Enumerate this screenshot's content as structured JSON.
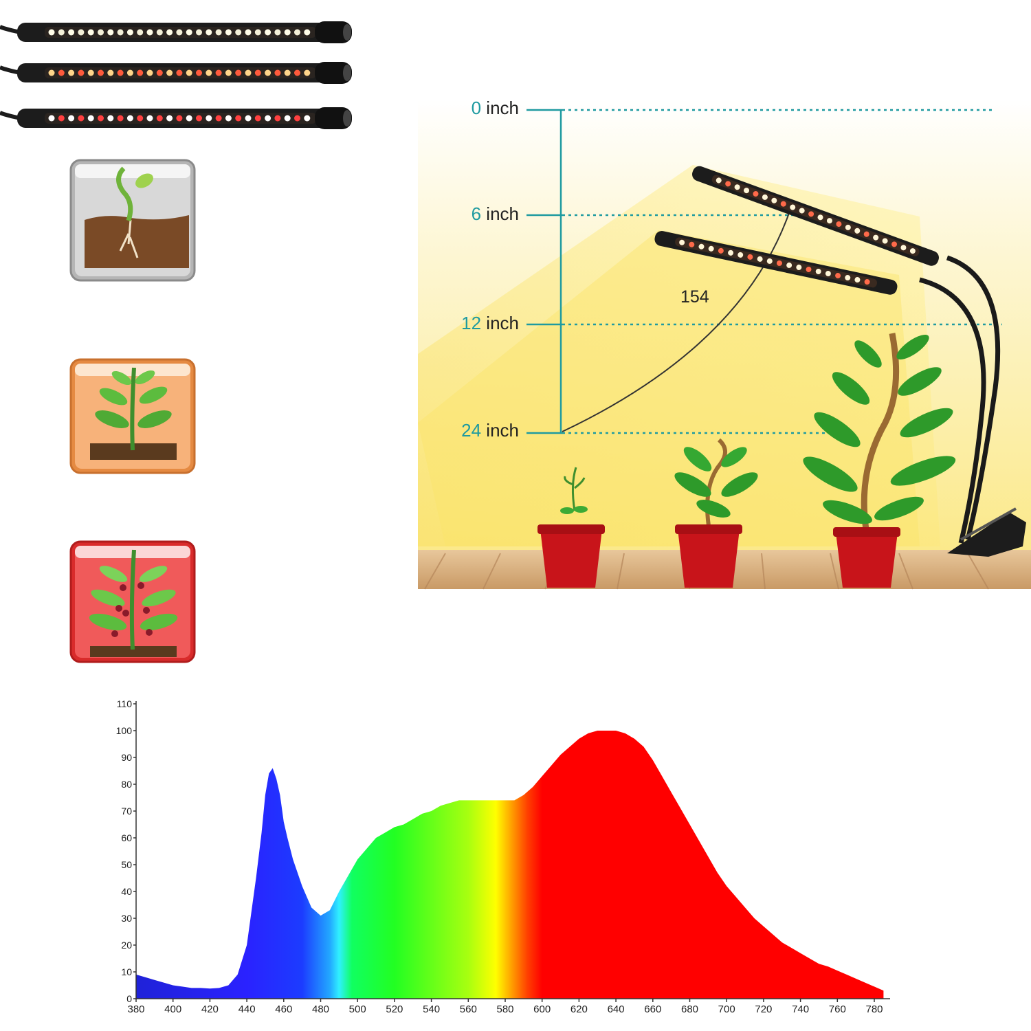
{
  "colors": {
    "teal": "#1e9aa0",
    "light_yellow": "#fbe27a",
    "pot_red": "#c8141a",
    "leaf_green": "#2e9a2a",
    "wood": "#d9b78a",
    "strip_dark": "#1c1c1c"
  },
  "strips": [
    {
      "name": "white-light-strip",
      "led_colors": [
        "#fffde8",
        "#f3f0d8"
      ]
    },
    {
      "name": "warm-red-light-strip",
      "led_colors": [
        "#ffd58a",
        "#ff5a3c"
      ]
    },
    {
      "name": "red-white-light-strip",
      "led_colors": [
        "#ffffff",
        "#ff4040"
      ]
    }
  ],
  "stage_icons": [
    {
      "name": "seedling-stage-icon",
      "bg": "#c8c8c8"
    },
    {
      "name": "vegetative-stage-icon",
      "bg": "#f4a565"
    },
    {
      "name": "flowering-stage-icon",
      "bg": "#ef4a4a"
    }
  ],
  "distance_labels": [
    {
      "num": "0",
      "unit": " inch"
    },
    {
      "num": "6",
      "unit": " inch"
    },
    {
      "num": "12",
      "unit": " inch"
    },
    {
      "num": "24",
      "unit": " inch"
    }
  ],
  "beam_angle_label": "154",
  "chart_data": {
    "type": "area",
    "title": "",
    "xlabel": "",
    "ylabel": "",
    "xlim": [
      380,
      780
    ],
    "ylim": [
      0,
      110
    ],
    "xticks": [
      380,
      400,
      420,
      440,
      460,
      480,
      500,
      520,
      540,
      560,
      580,
      600,
      620,
      640,
      660,
      680,
      700,
      720,
      740,
      760,
      780
    ],
    "yticks": [
      0,
      10,
      20,
      30,
      40,
      50,
      60,
      70,
      80,
      90,
      100,
      110
    ],
    "grid": false,
    "series": [
      {
        "x": [
          380,
          385,
          390,
          395,
          400,
          405,
          410,
          415,
          420,
          425,
          430,
          435,
          440,
          445,
          448,
          450,
          452,
          454,
          456,
          458,
          460,
          462,
          465,
          470,
          475,
          480,
          485,
          490,
          495,
          500,
          505,
          510,
          515,
          520,
          525,
          530,
          535,
          540,
          545,
          550,
          555,
          560,
          565,
          570,
          575,
          580,
          585,
          590,
          595,
          600,
          605,
          610,
          615,
          620,
          625,
          630,
          635,
          640,
          645,
          650,
          655,
          660,
          665,
          670,
          675,
          680,
          685,
          690,
          695,
          700,
          705,
          710,
          715,
          720,
          725,
          730,
          735,
          740,
          745,
          750,
          755,
          760,
          765,
          770,
          775,
          780,
          785
        ],
        "y": [
          9,
          8,
          7,
          6,
          5,
          4.5,
          4,
          4,
          3.8,
          4,
          5,
          9,
          20,
          45,
          62,
          76,
          84,
          86,
          82,
          76,
          66,
          60,
          52,
          42,
          34,
          31,
          33,
          40,
          46,
          52,
          56,
          60,
          62,
          64,
          65,
          67,
          69,
          70,
          72,
          73,
          74,
          74,
          74,
          74,
          74,
          74,
          74,
          76,
          79,
          83,
          87,
          91,
          94,
          97,
          99,
          100,
          100,
          100,
          99,
          97,
          94,
          89,
          83,
          77,
          71,
          65,
          59,
          53,
          47,
          42,
          38,
          34,
          30,
          27,
          24,
          21,
          19,
          17,
          15,
          13,
          12,
          10.5,
          9,
          7.5,
          6,
          4.5,
          3
        ]
      }
    ]
  }
}
